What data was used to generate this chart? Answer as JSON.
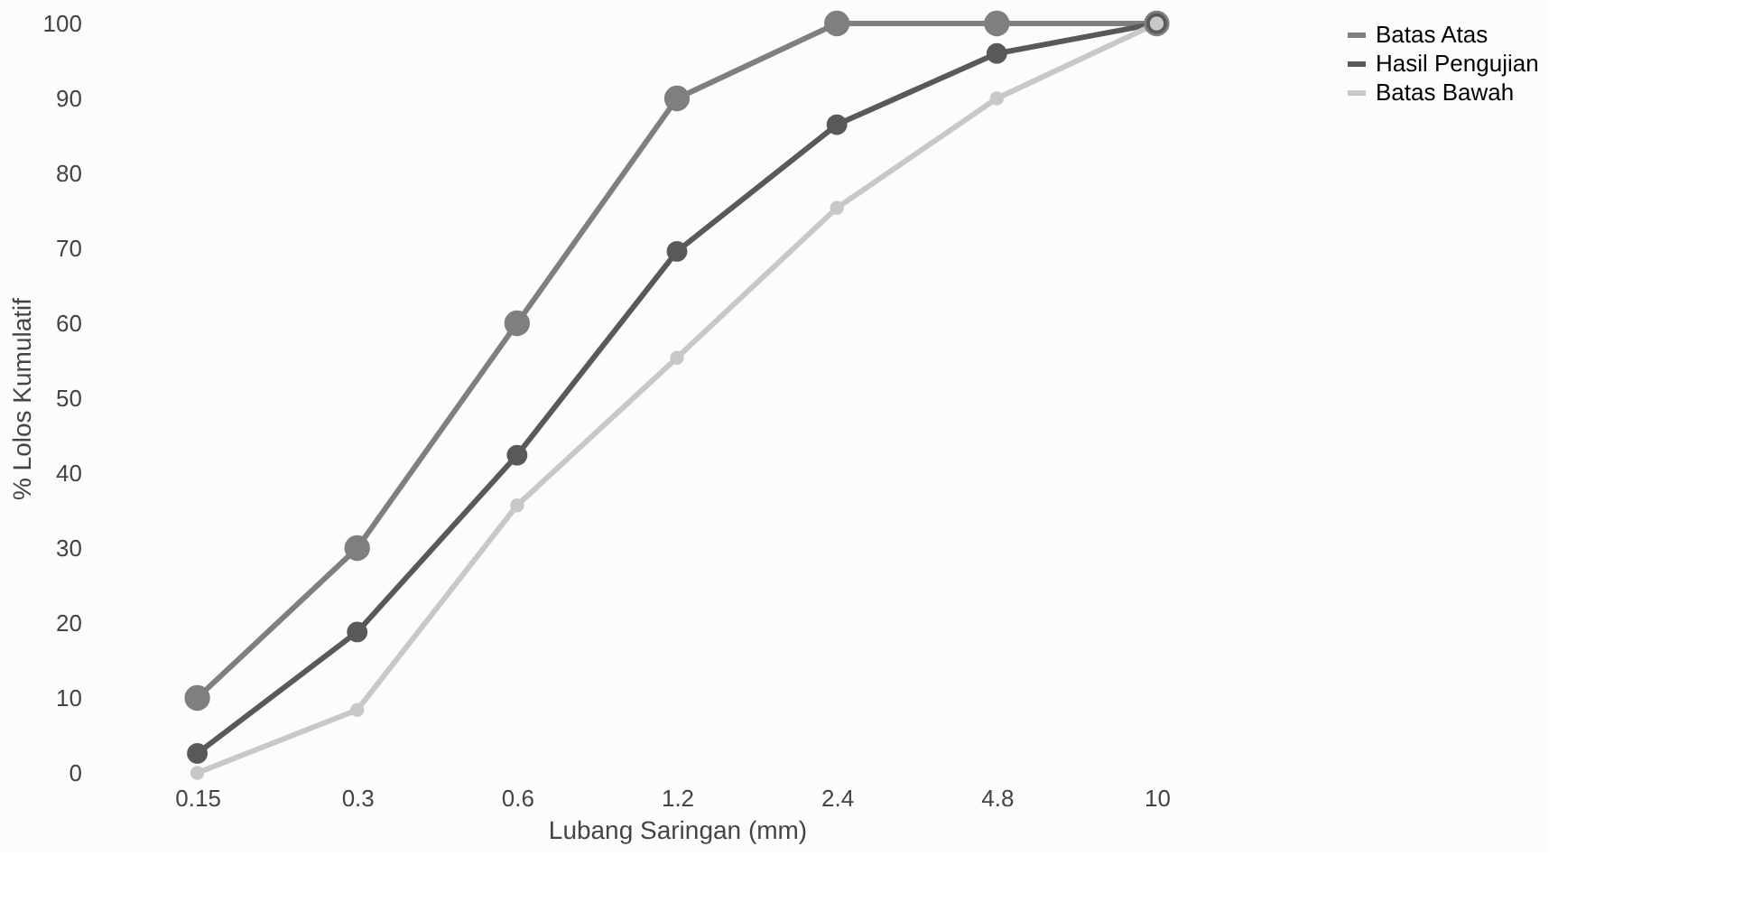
{
  "chart_data": {
    "type": "line",
    "xlabel": "Lubang Saringan (mm)",
    "ylabel": "% Lolos Kumulatif",
    "categories": [
      "0.15",
      "0.3",
      "0.6",
      "1.2",
      "2.4",
      "4.8",
      "10"
    ],
    "series": [
      {
        "name": "Batas Atas",
        "color": "#7f7f7f",
        "values": [
          10,
          30,
          60,
          90,
          100,
          100,
          100
        ]
      },
      {
        "name": "Hasil Pengujian",
        "color": "#595959",
        "values": [
          2.6,
          18.8,
          42.4,
          69.6,
          86.5,
          96,
          100
        ]
      },
      {
        "name": "Batas Bawah",
        "color": "#c8c8c8",
        "values": [
          0,
          8.4,
          35.7,
          55.4,
          75.4,
          90,
          100
        ]
      }
    ],
    "ylim": [
      0,
      100
    ],
    "yticks": [
      0,
      10,
      20,
      30,
      40,
      50,
      60,
      70,
      80,
      90,
      100
    ],
    "grid": false,
    "legend": "right",
    "marker": "circle",
    "line_style": "solid"
  }
}
